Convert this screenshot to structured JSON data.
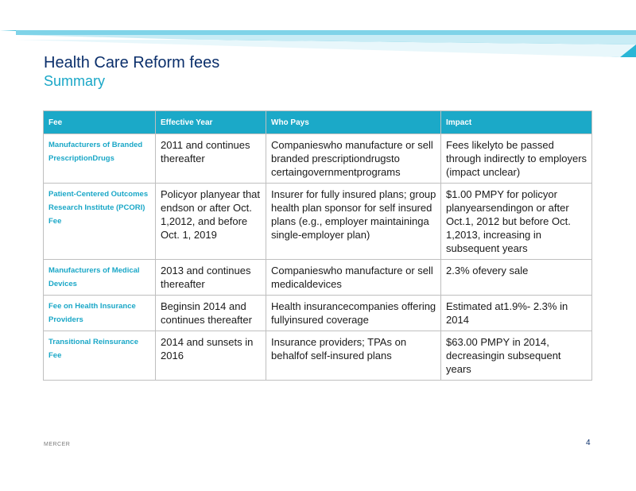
{
  "title": "Health Care Reform fees",
  "subtitle": "Summary",
  "colors": {
    "accent": "#1ba9c8",
    "title": "#0b2f6b",
    "subtitle": "#1aa7c7"
  },
  "table": {
    "headers": [
      "Fee",
      "Effective Year",
      "Who Pays",
      "Impact"
    ],
    "rows": [
      {
        "fee": "Manufacturers of Branded PrescriptionDrugs",
        "year": "2011 and continues thereafter",
        "who": "Companieswho manufacture or sell branded prescriptiondrugsto certaingovernmentprograms",
        "impact": "Fees likelyto be passed through indirectly to employers (impact unclear)"
      },
      {
        "fee": "Patient-Centered Outcomes Research Institute (PCORI) Fee",
        "year": "Policyor planyear that endson or after Oct. 1,2012, and before Oct. 1, 2019",
        "who": "Insurer for fully insured plans; group health plan sponsor for self insured plans (e.g., employer maintaininga single-employer plan)",
        "impact": "$1.00 PMPY for policyor planyearsendingon or after Oct.1, 2012 but before Oct. 1,2013, increasing in subsequent years"
      },
      {
        "fee": "Manufacturers of Medical Devices",
        "year": "2013 and continues thereafter",
        "who": "Companieswho manufacture or sell medicaldevices",
        "impact": "2.3% ofevery sale"
      },
      {
        "fee": "Fee on Health Insurance Providers",
        "year": "Beginsin 2014 and continues thereafter",
        "who": "Health insurancecompanies offering fullyinsured coverage",
        "impact": "Estimated at1.9%- 2.3% in 2014"
      },
      {
        "fee": "Transitional Reinsurance Fee",
        "year": "2014 and sunsets in 2016",
        "who": "Insurance providers; TPAs on behalfof self-insured plans",
        "impact": "$63.00 PMPY in 2014, decreasingin subsequent years"
      }
    ]
  },
  "footer": {
    "brand": "MERCER",
    "page_number": "4"
  }
}
